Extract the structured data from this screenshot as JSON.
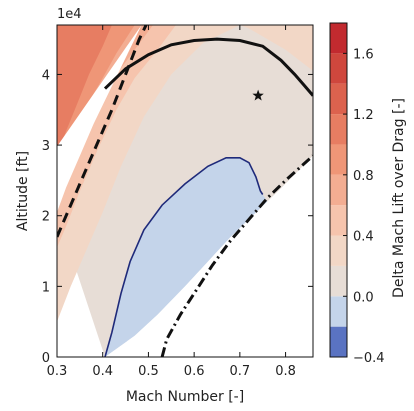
{
  "chart_data": {
    "type": "contour",
    "title": "",
    "xlabel": "Mach Number [-]",
    "ylabel": "Altitude [ft]",
    "xlim": [
      0.3,
      0.86
    ],
    "ylim": [
      0,
      47000
    ],
    "y_offset_label": "1e4",
    "xticks": [
      {
        "value": 0.3,
        "label": "0.3"
      },
      {
        "value": 0.4,
        "label": "0.4"
      },
      {
        "value": 0.5,
        "label": "0.5"
      },
      {
        "value": 0.6,
        "label": "0.6"
      },
      {
        "value": 0.7,
        "label": "0.7"
      },
      {
        "value": 0.8,
        "label": "0.8"
      }
    ],
    "yticks": [
      {
        "value": 0,
        "label": "0"
      },
      {
        "value": 10000,
        "label": "1"
      },
      {
        "value": 20000,
        "label": "2"
      },
      {
        "value": 30000,
        "label": "3"
      },
      {
        "value": 40000,
        "label": "4"
      }
    ],
    "colorbar": {
      "label": "Delta Mach Lift over Drag [-]",
      "range": [
        -0.4,
        1.8
      ],
      "levels": [
        -0.4,
        -0.2,
        0.0,
        0.2,
        0.4,
        0.6,
        0.8,
        1.0,
        1.2,
        1.4,
        1.6,
        1.8
      ],
      "colors": [
        "#5a73c2",
        "#c4d4ea",
        "#e7ddd6",
        "#f2d7c6",
        "#f6c4ad",
        "#f3ad92",
        "#ef9677",
        "#e77d62",
        "#dc624e",
        "#cf473d",
        "#c22a2f"
      ],
      "ticks": [
        {
          "value": -0.4,
          "label": "−0.4"
        },
        {
          "value": 0.0,
          "label": "0.0"
        },
        {
          "value": 0.4,
          "label": "0.4"
        },
        {
          "value": 0.8,
          "label": "0.8"
        },
        {
          "value": 1.2,
          "label": "1.2"
        },
        {
          "value": 1.6,
          "label": "1.6"
        }
      ]
    },
    "boundaries": {
      "left_envelope": [
        [
          0.3,
          20500
        ],
        [
          0.32,
          24000
        ],
        [
          0.35,
          28500
        ],
        [
          0.38,
          33000
        ],
        [
          0.41,
          37000
        ],
        [
          0.44,
          41000
        ],
        [
          0.47,
          45000
        ],
        [
          0.485,
          47000
        ]
      ],
      "bottom_right_envelope": [
        [
          0.405,
          0
        ],
        [
          0.47,
          3000
        ],
        [
          0.52,
          6000
        ],
        [
          0.58,
          10000
        ],
        [
          0.63,
          13500
        ],
        [
          0.68,
          17000
        ],
        [
          0.72,
          19500
        ],
        [
          0.76,
          22000
        ],
        [
          0.8,
          24500
        ],
        [
          0.86,
          28500
        ]
      ]
    },
    "contours": [
      {
        "level": 1.0,
        "points": [
          [
            0.42,
            47000
          ],
          [
            0.4,
            44000
          ],
          [
            0.37,
            40000
          ],
          [
            0.345,
            36000
          ],
          [
            0.32,
            32000
          ],
          [
            0.3,
            28500
          ]
        ]
      },
      {
        "level": 0.8,
        "points": [
          [
            0.47,
            47000
          ],
          [
            0.43,
            43000
          ],
          [
            0.4,
            39500
          ],
          [
            0.36,
            35000
          ],
          [
            0.33,
            31000
          ],
          [
            0.3,
            27000
          ]
        ]
      },
      {
        "level": 0.6,
        "points": [
          [
            0.51,
            47000
          ],
          [
            0.47,
            43500
          ],
          [
            0.43,
            40000
          ],
          [
            0.39,
            35500
          ],
          [
            0.35,
            30500
          ],
          [
            0.32,
            26500
          ],
          [
            0.3,
            24500
          ]
        ]
      },
      {
        "level": 0.4,
        "points": [
          [
            0.56,
            47000
          ],
          [
            0.52,
            43500
          ],
          [
            0.47,
            39500
          ],
          [
            0.43,
            35000
          ],
          [
            0.39,
            29500
          ],
          [
            0.35,
            23500
          ],
          [
            0.32,
            18500
          ],
          [
            0.3,
            15500
          ]
        ]
      },
      {
        "level": 0.2,
        "points": [
          [
            0.86,
            40500
          ],
          [
            0.8,
            43500
          ],
          [
            0.72,
            46500
          ],
          [
            0.7,
            47000
          ],
          [
            0.62,
            44500
          ],
          [
            0.55,
            40000
          ],
          [
            0.49,
            34000
          ],
          [
            0.44,
            27000
          ],
          [
            0.4,
            20500
          ],
          [
            0.36,
            14500
          ],
          [
            0.33,
            10000
          ],
          [
            0.3,
            5000
          ]
        ]
      },
      {
        "level": 0.0,
        "points": [
          [
            0.405,
            0
          ],
          [
            0.42,
            3500
          ],
          [
            0.44,
            9000
          ],
          [
            0.46,
            13500
          ],
          [
            0.49,
            18000
          ],
          [
            0.53,
            21500
          ],
          [
            0.58,
            24500
          ],
          [
            0.63,
            27000
          ],
          [
            0.67,
            28200
          ],
          [
            0.7,
            28200
          ],
          [
            0.72,
            27500
          ],
          [
            0.735,
            25500
          ],
          [
            0.745,
            23500
          ],
          [
            0.75,
            23000
          ]
        ]
      }
    ],
    "lines": [
      {
        "style": "dashed",
        "points": [
          [
            0.3,
            17000
          ],
          [
            0.33,
            21500
          ],
          [
            0.36,
            26000
          ],
          [
            0.39,
            30500
          ],
          [
            0.42,
            35000
          ],
          [
            0.45,
            40000
          ],
          [
            0.48,
            45000
          ],
          [
            0.495,
            47000
          ]
        ]
      },
      {
        "style": "dashdot",
        "points": [
          [
            0.53,
            0
          ],
          [
            0.54,
            2500
          ],
          [
            0.57,
            6000
          ],
          [
            0.61,
            10000
          ],
          [
            0.64,
            13000
          ],
          [
            0.68,
            16500
          ],
          [
            0.72,
            19500
          ],
          [
            0.76,
            22500
          ],
          [
            0.8,
            25000
          ],
          [
            0.86,
            28500
          ]
        ]
      },
      {
        "style": "solid",
        "points": [
          [
            0.405,
            38000
          ],
          [
            0.45,
            40800
          ],
          [
            0.5,
            42800
          ],
          [
            0.55,
            44200
          ],
          [
            0.6,
            44800
          ],
          [
            0.65,
            45000
          ],
          [
            0.7,
            44800
          ],
          [
            0.75,
            44000
          ],
          [
            0.79,
            42000
          ],
          [
            0.82,
            40000
          ],
          [
            0.84,
            38500
          ],
          [
            0.86,
            37000
          ]
        ]
      }
    ],
    "markers": [
      {
        "shape": "star",
        "x": 0.74,
        "y": 37000
      }
    ]
  }
}
